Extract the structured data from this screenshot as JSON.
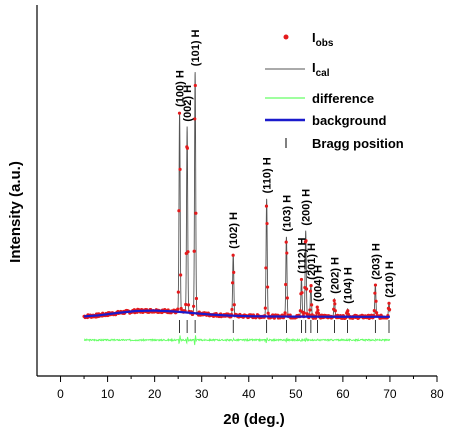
{
  "chart_data": {
    "type": "line",
    "xlabel_main": "2θ",
    "xlabel_rest": " (deg.)",
    "ylabel": "Intensity (a.u.)",
    "xlim": [
      -5,
      80
    ],
    "x_ticks": [
      0,
      10,
      20,
      30,
      40,
      50,
      60,
      70,
      80
    ],
    "y_ticks_labeled": false,
    "legend_position": "top-right",
    "legend": {
      "obs_main": "I",
      "obs_sub": "obs",
      "cal_main": "I",
      "cal_sub": "cal",
      "difference": "difference",
      "background": "background",
      "bragg": "Bragg position"
    },
    "colors": {
      "observed": "#e41a1c",
      "calculated": "#555555",
      "difference": "#66ff66",
      "background": "#1a1acc",
      "bragg": "#000000"
    },
    "background_curve": {
      "x": [
        5,
        8,
        12,
        16,
        20,
        24,
        28,
        32,
        36,
        40,
        45,
        50,
        55,
        60,
        65,
        70
      ],
      "y": [
        0.3,
        0.8,
        2.0,
        3.0,
        3.2,
        2.8,
        2.0,
        1.2,
        0.7,
        0.4,
        0.25,
        0.2,
        0.15,
        0.12,
        0.1,
        0.1
      ]
    },
    "peaks": [
      {
        "pos": 25.3,
        "height": 100,
        "label": "(100) H"
      },
      {
        "pos": 26.9,
        "height": 93,
        "label": "(002) H"
      },
      {
        "pos": 28.6,
        "height": 121,
        "label": "(101) H"
      },
      {
        "pos": 36.7,
        "height": 31,
        "label": "(102) H"
      },
      {
        "pos": 43.8,
        "height": 59,
        "label": "(110) H"
      },
      {
        "pos": 48.0,
        "height": 40,
        "label": "(103) H"
      },
      {
        "pos": 51.2,
        "height": 19,
        "label": "(112) H"
      },
      {
        "pos": 52.1,
        "height": 43,
        "label": "(200) H"
      },
      {
        "pos": 53.2,
        "height": 16,
        "label": "(201) H"
      },
      {
        "pos": 54.6,
        "height": 5,
        "label": "(004) H"
      },
      {
        "pos": 58.2,
        "height": 9,
        "label": "(202) H"
      },
      {
        "pos": 61.0,
        "height": 4,
        "label": "(104) H"
      },
      {
        "pos": 66.9,
        "height": 16,
        "label": "(203) H"
      },
      {
        "pos": 69.8,
        "height": 7,
        "label": "(210) H"
      }
    ],
    "bragg_positions": [
      25.3,
      26.9,
      28.6,
      36.7,
      43.8,
      48.0,
      51.2,
      52.1,
      53.2,
      54.6,
      58.2,
      61.0,
      66.9,
      69.8
    ]
  }
}
